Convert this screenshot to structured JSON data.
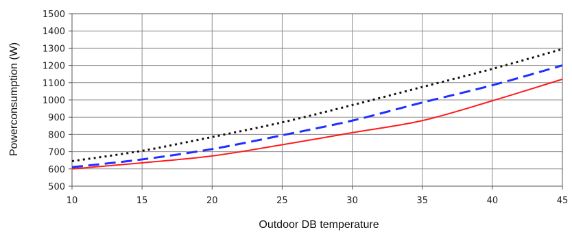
{
  "chart_data": {
    "type": "line",
    "title": "",
    "xlabel": "Outdoor DB temperature",
    "ylabel": "Powerconsumption (W)",
    "xlim": [
      10,
      45
    ],
    "ylim": [
      500,
      1500
    ],
    "xticks": [
      10,
      15,
      20,
      25,
      30,
      35,
      40,
      45
    ],
    "yticks": [
      500,
      600,
      700,
      800,
      900,
      1000,
      1100,
      1200,
      1300,
      1400,
      1500
    ],
    "grid": true,
    "legend": "none",
    "x": [
      10,
      15,
      20,
      25,
      30,
      35,
      40,
      45
    ],
    "series": [
      {
        "values": [
          645,
          705,
          785,
          870,
          970,
          1075,
          1180,
          1295
        ],
        "color": "#111111",
        "style": "dotted"
      },
      {
        "values": [
          610,
          655,
          715,
          795,
          880,
          985,
          1085,
          1200
        ],
        "color": "#1f2fff",
        "style": "dashed"
      },
      {
        "values": [
          600,
          635,
          675,
          740,
          810,
          880,
          995,
          1120
        ],
        "color": "#ff1a1a",
        "style": "solid"
      }
    ]
  }
}
